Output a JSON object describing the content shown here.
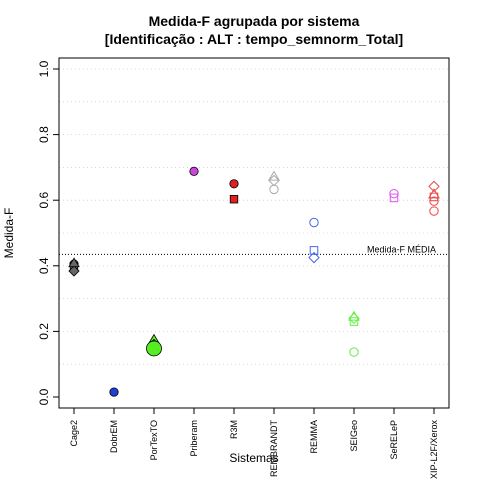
{
  "chart_data": {
    "type": "scatter",
    "title_line1": "Medida-F agrupada por sistema",
    "title_line2": "[Identificação : ALT : tempo_semnorm_Total]",
    "xlabel": "Sistemas",
    "ylabel": "Medida-F",
    "ylim": [
      0,
      1
    ],
    "yticks": [
      0.0,
      0.2,
      0.4,
      0.6,
      0.8,
      1.0
    ],
    "ytick_labels": [
      "0.0",
      "0.2",
      "0.4",
      "0.6",
      "0.8",
      "1.0"
    ],
    "grid": "horizontal dotted",
    "categories": [
      "Cage2",
      "DobrEM",
      "PorTexTO",
      "Priberam",
      "R3M",
      "REMBRANDT",
      "REMMA",
      "SEIGeo",
      "SeRELeP",
      "XIP-L2F/Xerox"
    ],
    "reference_line": {
      "label": "Medida-F MÉDIA",
      "value": 0.435
    },
    "points": [
      {
        "category": "Cage2",
        "value": 0.405,
        "shape": "circle",
        "filled": true,
        "color": "#666666"
      },
      {
        "category": "Cage2",
        "value": 0.397,
        "shape": "square",
        "filled": true,
        "color": "#666666"
      },
      {
        "category": "Cage2",
        "value": 0.384,
        "shape": "diamond",
        "filled": true,
        "color": "#666666"
      },
      {
        "category": "Cage2",
        "value": 0.408,
        "shape": "triangle",
        "filled": true,
        "color": "#666666"
      },
      {
        "category": "DobrEM",
        "value": 0.015,
        "shape": "circle",
        "filled": true,
        "color": "#1f3fd6"
      },
      {
        "category": "PorTexTO",
        "value": 0.175,
        "shape": "triangle",
        "filled": true,
        "color": "#55ee22"
      },
      {
        "category": "PorTexTO",
        "value": 0.16,
        "shape": "diamond",
        "filled": true,
        "color": "#55ee22"
      },
      {
        "category": "PorTexTO",
        "value": 0.155,
        "shape": "square",
        "filled": true,
        "color": "#55ee22"
      },
      {
        "category": "PorTexTO",
        "value": 0.148,
        "shape": "circle",
        "filled": true,
        "color": "#55ee22",
        "large": true
      },
      {
        "category": "Priberam",
        "value": 0.688,
        "shape": "circle",
        "filled": true,
        "color": "#cc44dd"
      },
      {
        "category": "R3M",
        "value": 0.65,
        "shape": "circle",
        "filled": true,
        "color": "#dd2222"
      },
      {
        "category": "R3M",
        "value": 0.603,
        "shape": "square",
        "filled": true,
        "color": "#dd2222"
      },
      {
        "category": "REMBRANDT",
        "value": 0.672,
        "shape": "triangle",
        "filled": false,
        "color": "#aaaaaa"
      },
      {
        "category": "REMBRANDT",
        "value": 0.66,
        "shape": "diamond",
        "filled": false,
        "color": "#aaaaaa"
      },
      {
        "category": "REMBRANDT",
        "value": 0.633,
        "shape": "circle",
        "filled": false,
        "color": "#aaaaaa"
      },
      {
        "category": "REMMA",
        "value": 0.532,
        "shape": "circle",
        "filled": false,
        "color": "#4466ee"
      },
      {
        "category": "REMMA",
        "value": 0.447,
        "shape": "square",
        "filled": false,
        "color": "#4466ee"
      },
      {
        "category": "REMMA",
        "value": 0.425,
        "shape": "diamond",
        "filled": false,
        "color": "#4466ee"
      },
      {
        "category": "SEIGeo",
        "value": 0.245,
        "shape": "triangle",
        "filled": false,
        "color": "#66ee44"
      },
      {
        "category": "SEIGeo",
        "value": 0.24,
        "shape": "diamond",
        "filled": false,
        "color": "#66ee44"
      },
      {
        "category": "SEIGeo",
        "value": 0.23,
        "shape": "square",
        "filled": false,
        "color": "#66ee44"
      },
      {
        "category": "SEIGeo",
        "value": 0.137,
        "shape": "circle",
        "filled": false,
        "color": "#66ee44"
      },
      {
        "category": "SeRELeP",
        "value": 0.62,
        "shape": "circle",
        "filled": false,
        "color": "#dd55ee"
      },
      {
        "category": "SeRELeP",
        "value": 0.607,
        "shape": "square",
        "filled": false,
        "color": "#dd55ee"
      },
      {
        "category": "XIP-L2F/Xerox",
        "value": 0.642,
        "shape": "diamond",
        "filled": false,
        "color": "#ee4444"
      },
      {
        "category": "XIP-L2F/Xerox",
        "value": 0.618,
        "shape": "triangle",
        "filled": false,
        "color": "#ee4444"
      },
      {
        "category": "XIP-L2F/Xerox",
        "value": 0.61,
        "shape": "square",
        "filled": false,
        "color": "#ee4444"
      },
      {
        "category": "XIP-L2F/Xerox",
        "value": 0.597,
        "shape": "circle",
        "filled": false,
        "color": "#ee4444"
      },
      {
        "category": "XIP-L2F/Xerox",
        "value": 0.567,
        "shape": "circle",
        "filled": false,
        "color": "#ee4444"
      }
    ]
  }
}
